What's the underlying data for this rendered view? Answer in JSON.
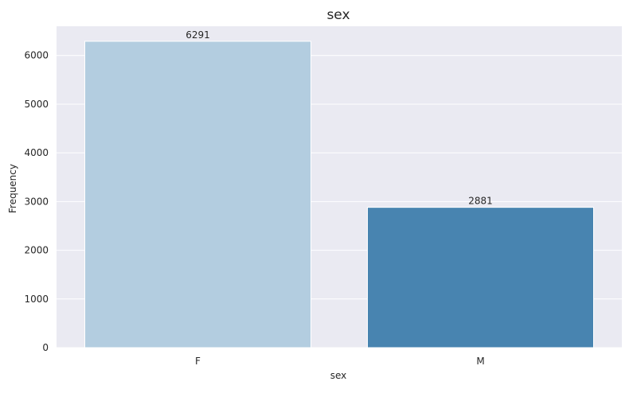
{
  "chart_data": {
    "type": "bar",
    "title": "sex",
    "xlabel": "sex",
    "ylabel": "Frequency",
    "categories": [
      "F",
      "M"
    ],
    "values": [
      6291,
      2881
    ],
    "data_labels": [
      "6291",
      "2881"
    ],
    "ylim": [
      0,
      6600
    ],
    "yticks": [
      0,
      1000,
      2000,
      3000,
      4000,
      5000,
      6000
    ],
    "grid": true,
    "legend": "none",
    "colors": {
      "background": "#eaeaf2",
      "grid": "#ffffff",
      "bars": [
        "#b3cde0",
        "#4884b0"
      ]
    }
  }
}
